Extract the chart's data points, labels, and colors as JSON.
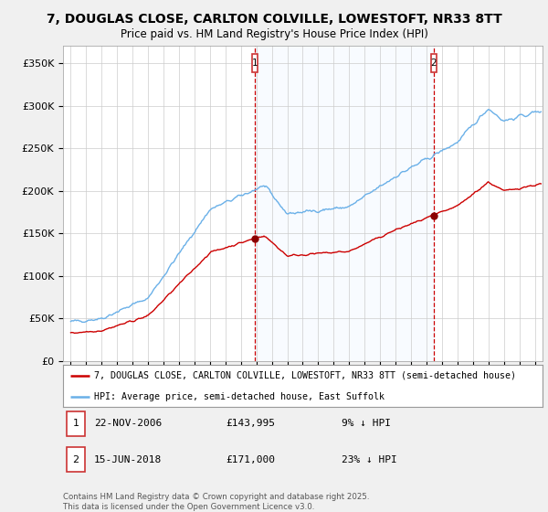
{
  "title": "7, DOUGLAS CLOSE, CARLTON COLVILLE, LOWESTOFT, NR33 8TT",
  "subtitle": "Price paid vs. HM Land Registry's House Price Index (HPI)",
  "bg_color": "#f0f0f0",
  "plot_bg_color": "#ffffff",
  "ylabel_ticks": [
    "£0",
    "£50K",
    "£100K",
    "£150K",
    "£200K",
    "£250K",
    "£300K",
    "£350K"
  ],
  "ytick_vals": [
    0,
    50000,
    100000,
    150000,
    200000,
    250000,
    300000,
    350000
  ],
  "ylim": [
    0,
    370000
  ],
  "sale1": {
    "date_num": 2006.9,
    "price": 143995,
    "label": "1",
    "date_str": "22-NOV-2006",
    "pct": "9% ↓ HPI"
  },
  "sale2": {
    "date_num": 2018.46,
    "price": 171000,
    "label": "2",
    "date_str": "15-JUN-2018",
    "pct": "23% ↓ HPI"
  },
  "hpi_line_color": "#6ab0e8",
  "hpi_fill_color": "#ddeeff",
  "price_line_color": "#cc0000",
  "vline_color": "#cc0000",
  "footer": "Contains HM Land Registry data © Crown copyright and database right 2025.\nThis data is licensed under the Open Government Licence v3.0.",
  "legend_label1": "7, DOUGLAS CLOSE, CARLTON COLVILLE, LOWESTOFT, NR33 8TT (semi-detached house)",
  "legend_label2": "HPI: Average price, semi-detached house, East Suffolk",
  "xlim_start": 1994.5,
  "xlim_end": 2025.5
}
